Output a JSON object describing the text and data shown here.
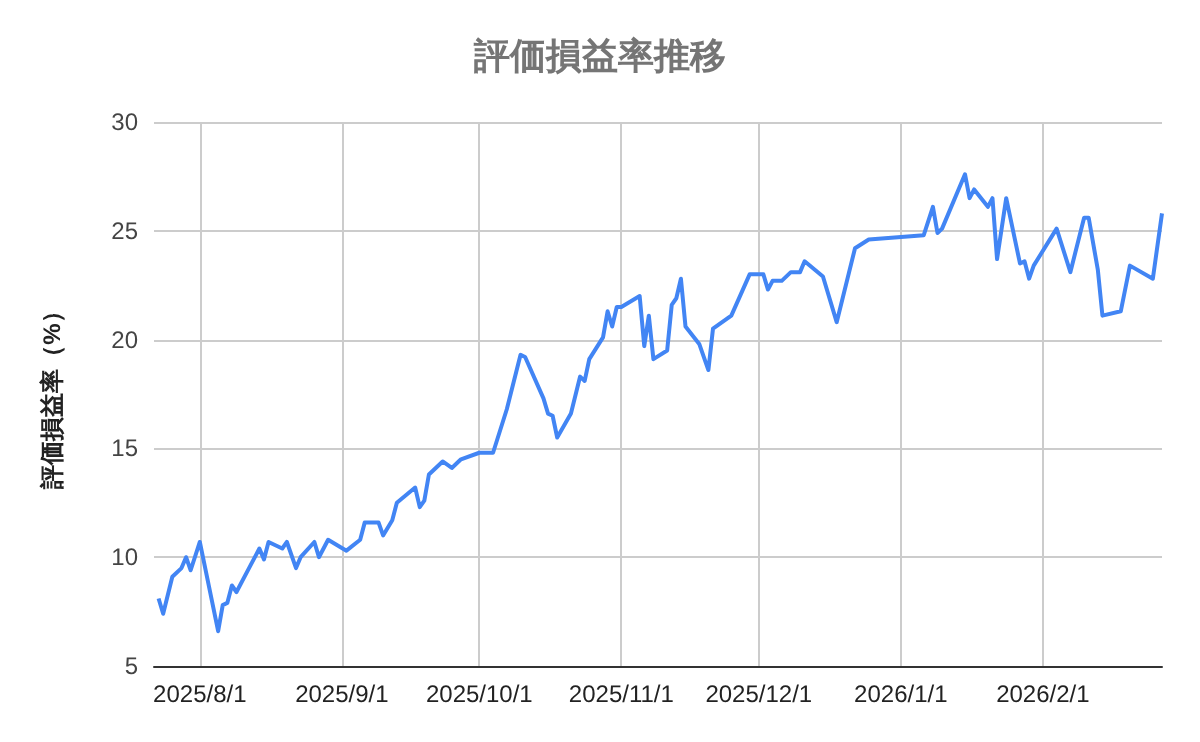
{
  "chart_data": {
    "type": "line",
    "title": "評価損益率推移",
    "ylabel": "評価損益率（%）",
    "x": [
      "2025-07-23",
      "2025-07-24",
      "2025-07-26",
      "2025-07-28",
      "2025-07-29",
      "2025-07-30",
      "2025-08-01",
      "2025-08-05",
      "2025-08-06",
      "2025-08-07",
      "2025-08-08",
      "2025-08-09",
      "2025-08-12",
      "2025-08-14",
      "2025-08-15",
      "2025-08-16",
      "2025-08-19",
      "2025-08-20",
      "2025-08-22",
      "2025-08-23",
      "2025-08-26",
      "2025-08-27",
      "2025-08-29",
      "2025-09-02",
      "2025-09-05",
      "2025-09-06",
      "2025-09-09",
      "2025-09-10",
      "2025-09-12",
      "2025-09-13",
      "2025-09-17",
      "2025-09-18",
      "2025-09-19",
      "2025-09-20",
      "2025-09-23",
      "2025-09-25",
      "2025-09-27",
      "2025-10-01",
      "2025-10-04",
      "2025-10-07",
      "2025-10-10",
      "2025-10-11",
      "2025-10-15",
      "2025-10-16",
      "2025-10-17",
      "2025-10-18",
      "2025-10-21",
      "2025-10-23",
      "2025-10-24",
      "2025-10-25",
      "2025-10-28",
      "2025-10-29",
      "2025-10-30",
      "2025-10-31",
      "2025-11-01",
      "2025-11-05",
      "2025-11-06",
      "2025-11-07",
      "2025-11-08",
      "2025-11-11",
      "2025-11-12",
      "2025-11-13",
      "2025-11-14",
      "2025-11-15",
      "2025-11-18",
      "2025-11-20",
      "2025-11-21",
      "2025-11-25",
      "2025-11-29",
      "2025-12-02",
      "2025-12-03",
      "2025-12-04",
      "2025-12-06",
      "2025-12-08",
      "2025-12-10",
      "2025-12-11",
      "2025-12-15",
      "2025-12-18",
      "2025-12-22",
      "2025-12-25",
      "2026-01-06",
      "2026-01-08",
      "2026-01-09",
      "2026-01-10",
      "2026-01-15",
      "2026-01-16",
      "2026-01-17",
      "2026-01-20",
      "2026-01-21",
      "2026-01-22",
      "2026-01-24",
      "2026-01-27",
      "2026-01-28",
      "2026-01-29",
      "2026-01-30",
      "2026-02-04",
      "2026-02-07",
      "2026-02-10",
      "2026-02-11",
      "2026-02-13",
      "2026-02-14",
      "2026-02-18",
      "2026-02-20",
      "2026-02-25",
      "2026-02-27"
    ],
    "series": [
      {
        "color": "#4285f4",
        "values": [
          8.1,
          7.4,
          9.1,
          9.5,
          10.0,
          9.4,
          10.7,
          6.6,
          7.8,
          7.9,
          8.7,
          8.4,
          9.6,
          10.4,
          9.9,
          10.7,
          10.4,
          10.7,
          9.5,
          10.0,
          10.7,
          10.0,
          10.8,
          10.3,
          10.8,
          11.6,
          11.6,
          11.0,
          11.7,
          12.5,
          13.2,
          12.3,
          12.6,
          13.8,
          14.4,
          14.1,
          14.5,
          14.8,
          14.8,
          16.8,
          19.3,
          19.2,
          17.3,
          16.6,
          16.5,
          15.5,
          16.6,
          18.3,
          18.1,
          19.1,
          20.1,
          21.3,
          20.6,
          21.5,
          21.5,
          22.0,
          19.7,
          21.1,
          19.1,
          19.5,
          21.6,
          21.9,
          22.8,
          20.6,
          19.8,
          18.6,
          20.5,
          21.1,
          23.0,
          23.0,
          22.3,
          22.7,
          22.7,
          23.1,
          23.1,
          23.6,
          22.9,
          20.8,
          24.2,
          24.6,
          24.8,
          26.1,
          24.9,
          25.1,
          27.6,
          26.5,
          26.9,
          26.1,
          26.5,
          23.7,
          26.5,
          23.5,
          23.6,
          22.8,
          23.4,
          25.1,
          23.1,
          25.6,
          25.6,
          23.2,
          21.1,
          21.3,
          23.4,
          22.8,
          25.8
        ]
      }
    ],
    "xlim": [
      "2025-07-22",
      "2026-02-27"
    ],
    "xticks": [
      {
        "value": "2025-08-01",
        "label": "2025/8/1"
      },
      {
        "value": "2025-09-01",
        "label": "2025/9/1"
      },
      {
        "value": "2025-10-01",
        "label": "2025/10/1"
      },
      {
        "value": "2025-11-01",
        "label": "2025/11/1"
      },
      {
        "value": "2025-12-01",
        "label": "2025/12/1"
      },
      {
        "value": "2026-01-01",
        "label": "2026/1/1"
      },
      {
        "value": "2026-02-01",
        "label": "2026/2/1"
      }
    ],
    "ylim": [
      5,
      30
    ],
    "yticks": [
      5,
      10,
      15,
      20,
      25,
      30
    ],
    "grid": true,
    "marker": "none",
    "line_style": "solid"
  }
}
